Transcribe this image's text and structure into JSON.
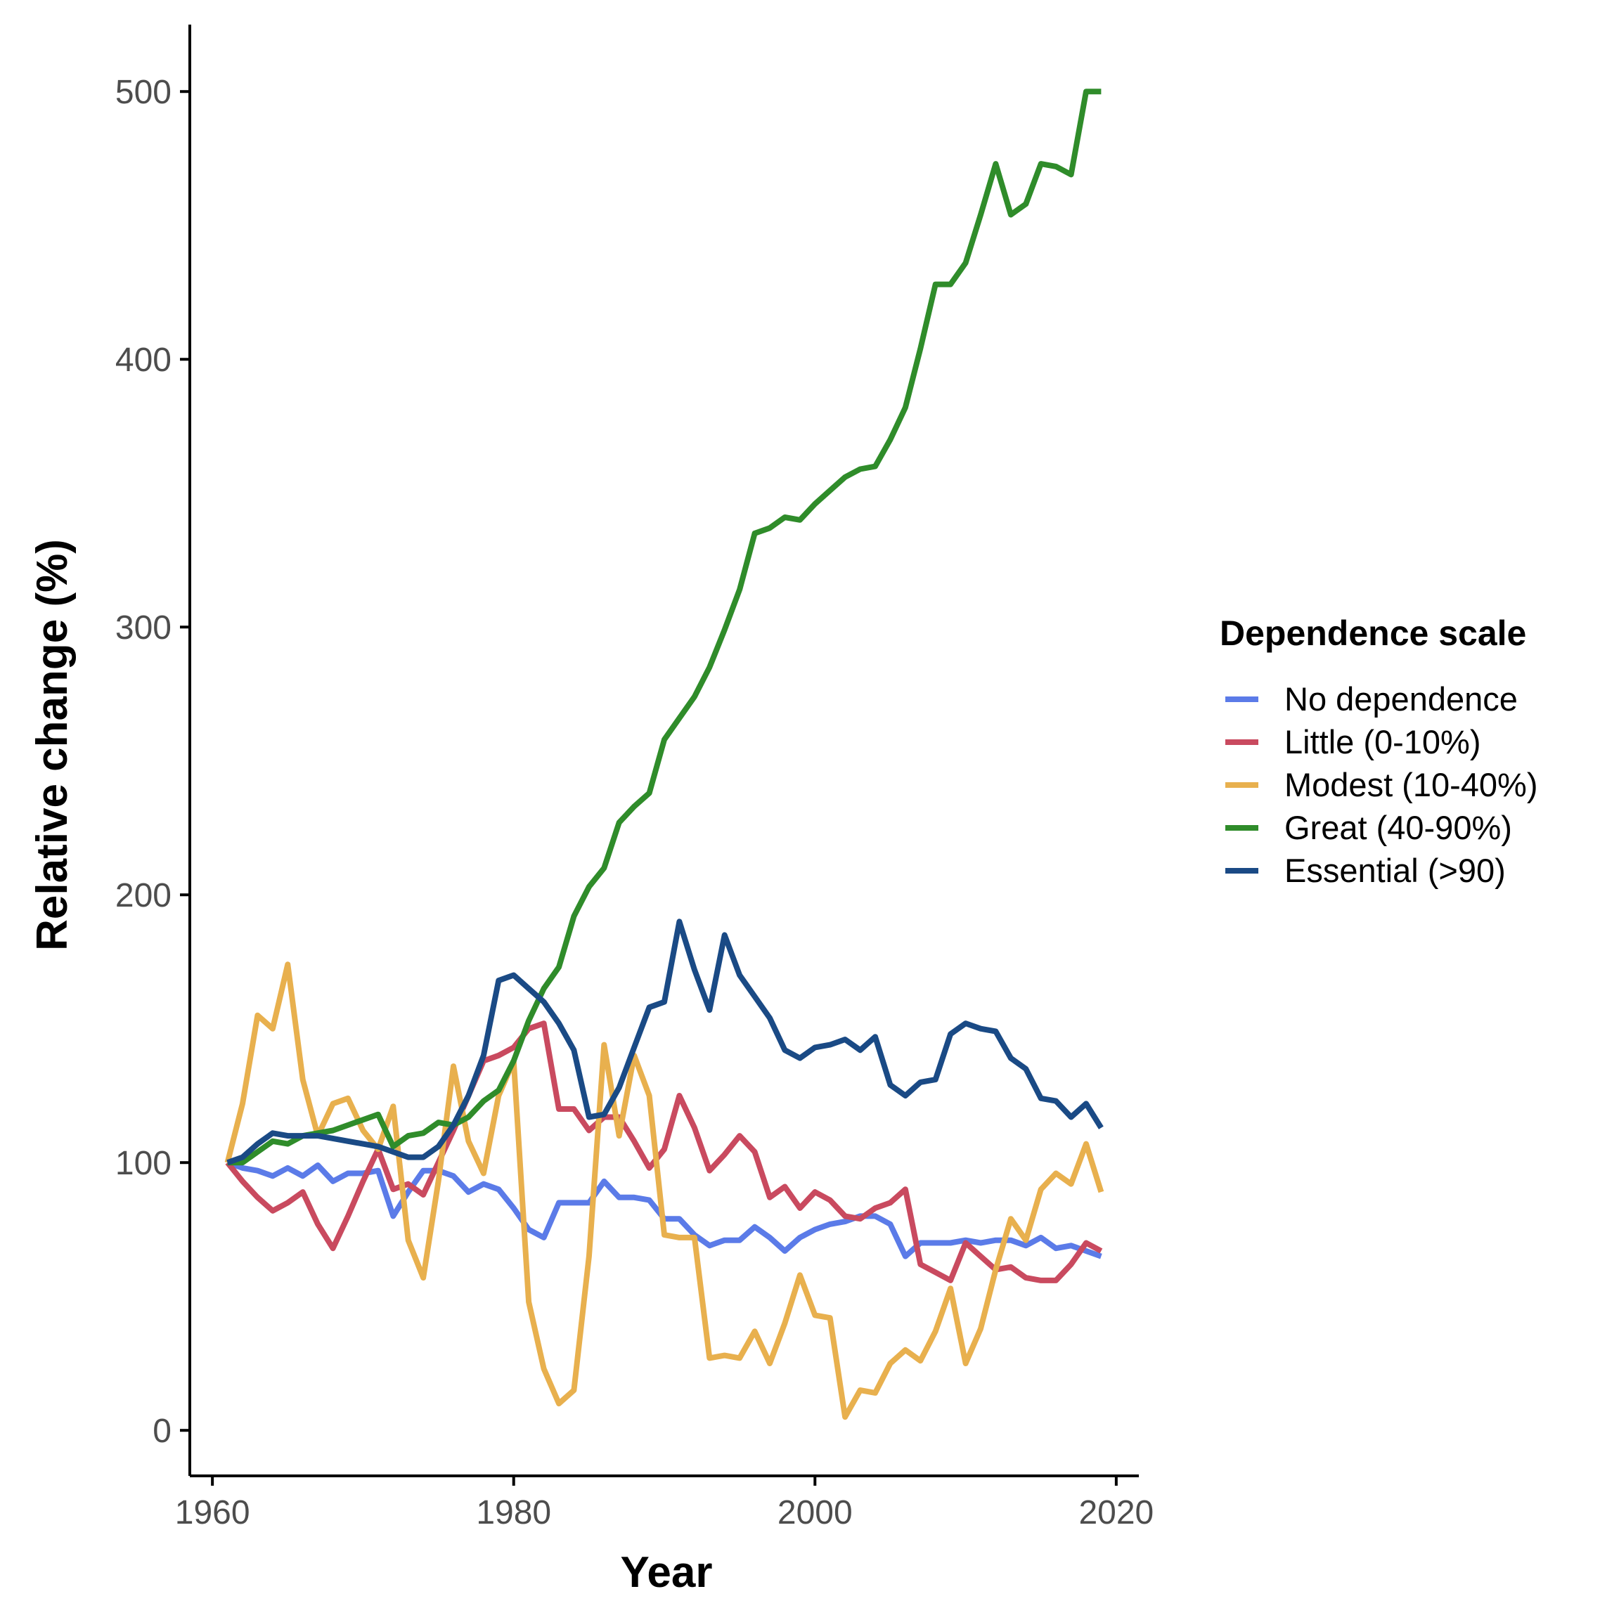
{
  "chart_data": {
    "type": "line",
    "title": "",
    "xlabel": "Year",
    "ylabel": "Relative change (%)",
    "xlim": [
      1958.5,
      2021.5
    ],
    "ylim": [
      -17,
      525
    ],
    "x_ticks": [
      1960,
      1980,
      2000,
      2020
    ],
    "y_ticks": [
      0,
      100,
      200,
      300,
      400,
      500
    ],
    "x_tick_labels": [
      "1960",
      "1980",
      "2000",
      "2020"
    ],
    "y_tick_labels": [
      "0",
      "100",
      "200",
      "300",
      "400",
      "500"
    ],
    "grid": false,
    "legend": {
      "title": "Dependence scale",
      "position": "right"
    },
    "x": [
      1961,
      1962,
      1963,
      1964,
      1965,
      1966,
      1967,
      1968,
      1969,
      1970,
      1971,
      1972,
      1973,
      1974,
      1975,
      1976,
      1977,
      1978,
      1979,
      1980,
      1981,
      1982,
      1983,
      1984,
      1985,
      1986,
      1987,
      1988,
      1989,
      1990,
      1991,
      1992,
      1993,
      1994,
      1995,
      1996,
      1997,
      1998,
      1999,
      2000,
      2001,
      2002,
      2003,
      2004,
      2005,
      2006,
      2007,
      2008,
      2009,
      2010,
      2011,
      2012,
      2013,
      2014,
      2015,
      2016,
      2017,
      2018,
      2019
    ],
    "series": [
      {
        "name": "No dependence",
        "color": "#5b7be8",
        "values": [
          100,
          98,
          97,
          95,
          98,
          95,
          99,
          93,
          96,
          96,
          97,
          80,
          89,
          97,
          97,
          95,
          89,
          92,
          90,
          83,
          75,
          72,
          85,
          85,
          85,
          93,
          87,
          87,
          86,
          79,
          79,
          73,
          69,
          71,
          71,
          76,
          72,
          67,
          72,
          75,
          77,
          78,
          80,
          80,
          77,
          65,
          70,
          70,
          70,
          71,
          70,
          71,
          71,
          69,
          72,
          68,
          69,
          67,
          65
        ]
      },
      {
        "name": "Little (0-10%)",
        "color": "#c94a5f",
        "values": [
          100,
          93,
          87,
          82,
          85,
          89,
          77,
          68,
          80,
          93,
          105,
          90,
          92,
          88,
          100,
          112,
          125,
          138,
          140,
          143,
          150,
          152,
          120,
          120,
          112,
          117,
          117,
          108,
          98,
          105,
          125,
          113,
          97,
          103,
          110,
          104,
          87,
          91,
          83,
          89,
          86,
          80,
          79,
          83,
          85,
          90,
          62,
          59,
          56,
          70,
          65,
          60,
          61,
          57,
          56,
          56,
          62,
          70,
          67
        ]
      },
      {
        "name": "Modest (10-40%)",
        "color": "#e8b04e",
        "values": [
          100,
          122,
          155,
          150,
          174,
          131,
          110,
          122,
          124,
          112,
          105,
          121,
          71,
          57,
          93,
          136,
          108,
          96,
          125,
          138,
          48,
          23,
          10,
          15,
          65,
          144,
          110,
          140,
          125,
          73,
          72,
          72,
          27,
          28,
          27,
          37,
          25,
          40,
          58,
          43,
          42,
          5,
          15,
          14,
          25,
          30,
          26,
          37,
          53,
          25,
          38,
          60,
          79,
          71,
          90,
          96,
          92,
          107,
          89
        ]
      },
      {
        "name": "Great (40-90%)",
        "color": "#2f8c2a",
        "values": [
          100,
          100,
          104,
          108,
          107,
          110,
          111,
          112,
          114,
          116,
          118,
          106,
          110,
          111,
          115,
          114,
          117,
          123,
          127,
          138,
          153,
          165,
          173,
          192,
          203,
          210,
          227,
          233,
          238,
          258,
          266,
          274,
          285,
          299,
          314,
          335,
          337,
          341,
          340,
          346,
          351,
          356,
          359,
          360,
          370,
          382,
          404,
          428,
          428,
          436,
          454,
          473,
          454,
          458,
          473,
          472,
          469,
          500,
          500
        ]
      },
      {
        "name": "Essential (>90)",
        "color": "#1a4a85",
        "values": [
          100,
          102,
          107,
          111,
          110,
          110,
          110,
          109,
          108,
          107,
          106,
          104,
          102,
          102,
          106,
          114,
          125,
          140,
          168,
          170,
          165,
          160,
          152,
          142,
          117,
          118,
          128,
          143,
          158,
          160,
          190,
          172,
          157,
          185,
          170,
          162,
          154,
          142,
          139,
          143,
          144,
          146,
          142,
          147,
          129,
          125,
          130,
          131,
          148,
          152,
          150,
          149,
          139,
          135,
          124,
          123,
          117,
          122,
          113
        ]
      }
    ]
  }
}
